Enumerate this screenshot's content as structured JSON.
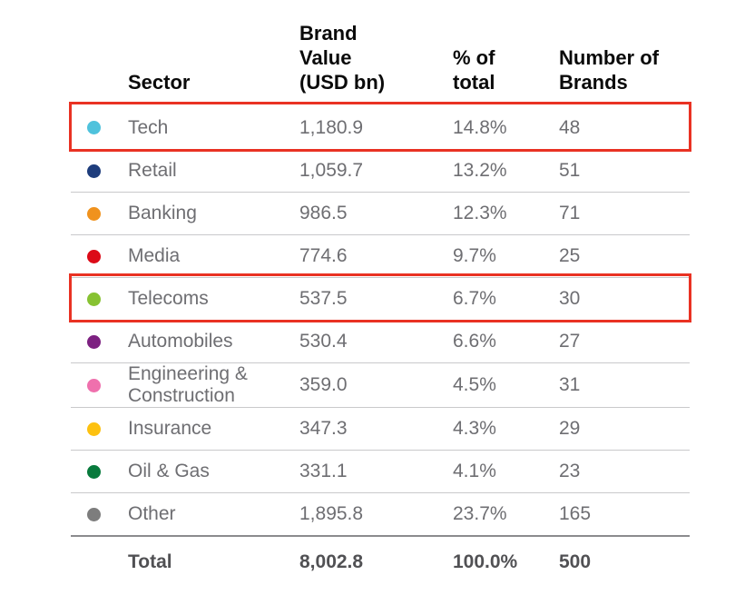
{
  "table": {
    "headers": {
      "sector": "Sector",
      "brand_value": "Brand\nValue\n(USD bn)",
      "pct_of_total": "% of\ntotal",
      "number_of_brands": "Number of\nBrands"
    },
    "rows": [
      {
        "sector": "Tech",
        "dot_color": "#4fc2dc",
        "brand_value": "1,180.9",
        "pct_of_total": "14.8%",
        "number_of_brands": "48",
        "highlighted": true
      },
      {
        "sector": "Retail",
        "dot_color": "#1e3d7c",
        "brand_value": "1,059.7",
        "pct_of_total": "13.2%",
        "number_of_brands": "51",
        "highlighted": false
      },
      {
        "sector": "Banking",
        "dot_color": "#f0921d",
        "brand_value": "986.5",
        "pct_of_total": "12.3%",
        "number_of_brands": "71",
        "highlighted": false
      },
      {
        "sector": "Media",
        "dot_color": "#dc0a17",
        "brand_value": "774.6",
        "pct_of_total": "9.7%",
        "number_of_brands": "25",
        "highlighted": false
      },
      {
        "sector": "Telecoms",
        "dot_color": "#87c232",
        "brand_value": "537.5",
        "pct_of_total": "6.7%",
        "number_of_brands": "30",
        "highlighted": true
      },
      {
        "sector": "Automobiles",
        "dot_color": "#7d2181",
        "brand_value": "530.4",
        "pct_of_total": "6.6%",
        "number_of_brands": "27",
        "highlighted": false
      },
      {
        "sector": "Engineering &\nConstruction",
        "dot_color": "#ef70ad",
        "brand_value": "359.0",
        "pct_of_total": "4.5%",
        "number_of_brands": "31",
        "highlighted": false
      },
      {
        "sector": "Insurance",
        "dot_color": "#fdc110",
        "brand_value": "347.3",
        "pct_of_total": "4.3%",
        "number_of_brands": "29",
        "highlighted": false
      },
      {
        "sector": "Oil & Gas",
        "dot_color": "#087a3c",
        "brand_value": "331.1",
        "pct_of_total": "4.1%",
        "number_of_brands": "23",
        "highlighted": false
      },
      {
        "sector": "Other",
        "dot_color": "#7d7d7d",
        "brand_value": "1,895.8",
        "pct_of_total": "23.7%",
        "number_of_brands": "165",
        "highlighted": false
      }
    ],
    "total": {
      "label": "Total",
      "brand_value": "8,002.8",
      "pct_of_total": "100.0%",
      "number_of_brands": "500"
    },
    "highlight_color": "#e93223"
  },
  "chart_data": {
    "type": "table",
    "columns": [
      "Sector",
      "Brand Value (USD bn)",
      "% of total",
      "Number of Brands"
    ],
    "rows": [
      [
        "Tech",
        1180.9,
        "14.8%",
        48
      ],
      [
        "Retail",
        1059.7,
        "13.2%",
        51
      ],
      [
        "Banking",
        986.5,
        "12.3%",
        71
      ],
      [
        "Media",
        774.6,
        "9.7%",
        25
      ],
      [
        "Telecoms",
        537.5,
        "6.7%",
        30
      ],
      [
        "Automobiles",
        530.4,
        "6.6%",
        27
      ],
      [
        "Engineering & Construction",
        359.0,
        "4.5%",
        31
      ],
      [
        "Insurance",
        347.3,
        "4.3%",
        29
      ],
      [
        "Oil & Gas",
        331.1,
        "4.1%",
        23
      ],
      [
        "Other",
        1895.8,
        "23.7%",
        165
      ]
    ],
    "total_row": [
      "Total",
      8002.8,
      "100.0%",
      500
    ],
    "highlighted_rows": [
      "Tech",
      "Telecoms"
    ],
    "legend_dot_colors": {
      "Tech": "#4fc2dc",
      "Retail": "#1e3d7c",
      "Banking": "#f0921d",
      "Media": "#dc0a17",
      "Telecoms": "#87c232",
      "Automobiles": "#7d2181",
      "Engineering & Construction": "#ef70ad",
      "Insurance": "#fdc110",
      "Oil & Gas": "#087a3c",
      "Other": "#7d7d7d"
    }
  }
}
